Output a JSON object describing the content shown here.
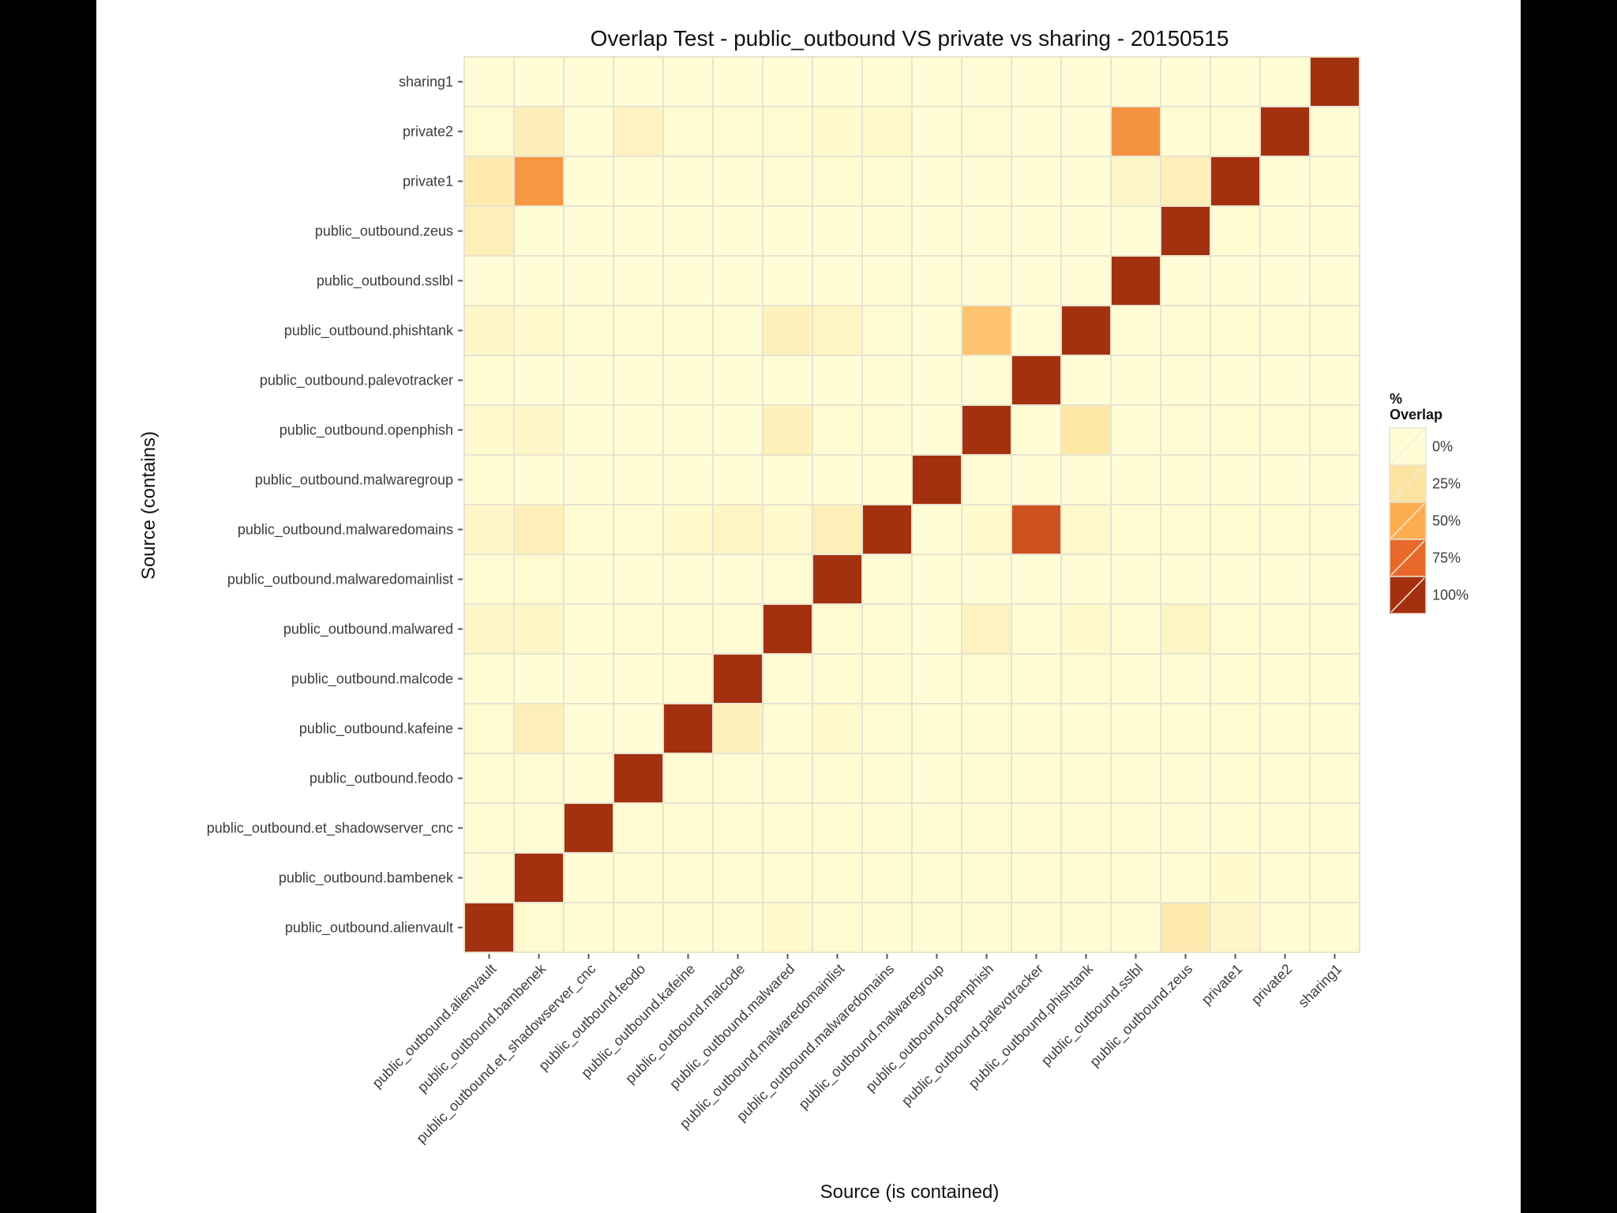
{
  "chart_data": {
    "type": "heatmap",
    "title": "Overlap Test - public_outbound VS private vs sharing - 20150515",
    "xlabel": "Source (is contained)",
    "ylabel": "Source (contains)",
    "x_categories": [
      "public_outbound.alienvault",
      "public_outbound.bambenek",
      "public_outbound.et_shadowserver_cnc",
      "public_outbound.feodo",
      "public_outbound.kafeine",
      "public_outbound.malcode",
      "public_outbound.malwared",
      "public_outbound.malwaredomainlist",
      "public_outbound.malwaredomains",
      "public_outbound.malwaregroup",
      "public_outbound.openphish",
      "public_outbound.palevotracker",
      "public_outbound.phishtank",
      "public_outbound.sslbl",
      "public_outbound.zeus",
      "private1",
      "private2",
      "sharing1"
    ],
    "y_categories": [
      "sharing1",
      "private2",
      "private1",
      "public_outbound.zeus",
      "public_outbound.sslbl",
      "public_outbound.phishtank",
      "public_outbound.palevotracker",
      "public_outbound.openphish",
      "public_outbound.malwaregroup",
      "public_outbound.malwaredomains",
      "public_outbound.malwaredomainlist",
      "public_outbound.malwared",
      "public_outbound.malcode",
      "public_outbound.kafeine",
      "public_outbound.feodo",
      "public_outbound.et_shadowserver_cnc",
      "public_outbound.bambenek",
      "public_outbound.alienvault"
    ],
    "values_percent": [
      [
        0,
        0,
        0,
        0,
        0,
        0,
        0,
        0,
        0,
        0,
        0,
        0,
        0,
        0,
        0,
        0,
        0,
        100
      ],
      [
        3,
        15,
        0,
        10,
        2,
        1,
        3,
        4,
        5,
        0,
        1,
        0,
        0,
        60,
        1,
        2,
        100,
        0
      ],
      [
        18,
        58,
        0,
        0,
        0,
        0,
        1,
        1,
        2,
        0,
        0,
        0,
        0,
        6,
        14,
        100,
        0,
        0
      ],
      [
        14,
        0,
        0,
        0,
        0,
        0,
        0,
        0,
        0,
        0,
        0,
        0,
        0,
        0,
        100,
        2,
        0,
        0
      ],
      [
        0,
        0,
        0,
        0,
        0,
        0,
        0,
        0,
        0,
        0,
        0,
        0,
        0,
        100,
        0,
        0,
        0,
        0
      ],
      [
        6,
        4,
        1,
        1,
        1,
        1,
        12,
        8,
        3,
        0,
        40,
        0,
        100,
        0,
        2,
        1,
        1,
        1
      ],
      [
        1,
        0,
        0,
        0,
        0,
        0,
        0,
        0,
        0,
        0,
        0,
        100,
        0,
        0,
        0,
        0,
        0,
        0
      ],
      [
        4,
        6,
        0,
        0,
        0,
        0,
        12,
        2,
        1,
        0,
        100,
        0,
        22,
        0,
        1,
        1,
        1,
        1
      ],
      [
        1,
        0,
        0,
        0,
        0,
        0,
        0,
        0,
        0,
        100,
        0,
        0,
        0,
        0,
        0,
        0,
        0,
        0
      ],
      [
        6,
        14,
        1,
        1,
        4,
        8,
        4,
        14,
        100,
        0,
        4,
        85,
        5,
        1,
        2,
        3,
        3,
        2
      ],
      [
        1,
        3,
        0,
        0,
        0,
        0,
        1,
        100,
        2,
        0,
        0,
        0,
        0,
        0,
        0,
        0,
        0,
        0
      ],
      [
        6,
        7,
        0,
        1,
        1,
        2,
        100,
        2,
        1,
        0,
        10,
        1,
        5,
        1,
        8,
        3,
        2,
        1
      ],
      [
        1,
        0,
        0,
        0,
        1,
        100,
        1,
        1,
        1,
        0,
        2,
        1,
        1,
        1,
        1,
        1,
        1,
        1
      ],
      [
        3,
        14,
        0,
        0,
        100,
        12,
        1,
        4,
        3,
        1,
        2,
        1,
        1,
        1,
        2,
        3,
        2,
        1
      ],
      [
        1,
        1,
        0,
        100,
        1,
        1,
        1,
        1,
        1,
        0,
        1,
        1,
        1,
        1,
        1,
        1,
        1,
        1
      ],
      [
        1,
        2,
        100,
        2,
        2,
        2,
        2,
        2,
        2,
        1,
        1,
        1,
        1,
        1,
        1,
        1,
        1,
        1
      ],
      [
        0,
        100,
        0,
        2,
        2,
        2,
        2,
        2,
        2,
        1,
        1,
        2,
        2,
        1,
        1,
        4,
        1,
        1
      ],
      [
        100,
        3,
        1,
        1,
        1,
        1,
        4,
        3,
        2,
        1,
        2,
        1,
        1,
        1,
        18,
        6,
        2,
        1
      ]
    ],
    "scale": {
      "min": 0,
      "max": 100,
      "low_color": "#fffdd6",
      "high_color": "#a3310f"
    },
    "grid_line_color": "#e8e3cf",
    "legend": {
      "title_line1": "%",
      "title_line2": "Overlap",
      "position": "right",
      "items": [
        {
          "label": "0%",
          "value": 0
        },
        {
          "label": "25%",
          "value": 25
        },
        {
          "label": "50%",
          "value": 50
        },
        {
          "label": "75%",
          "value": 75
        },
        {
          "label": "100%",
          "value": 100
        }
      ]
    }
  }
}
